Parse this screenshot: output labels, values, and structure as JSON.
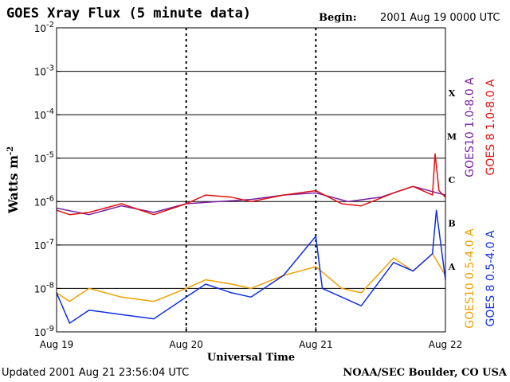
{
  "header": {
    "title": "GOES Xray Flux (5 minute data)",
    "begin_label": "Begin:",
    "begin_value": "2001 Aug 19 0000 UTC"
  },
  "footer": {
    "updated_label": "Updated",
    "updated_value": "2001 Aug 21 23:56:04 UTC",
    "credit": "NOAA/SEC Boulder, CO USA"
  },
  "chart_data": {
    "type": "line",
    "xlabel": "Universal Time",
    "ylabel_base": "Watts m",
    "ylabel_exp": "-2",
    "y_scale": "log",
    "ylim_exp": [
      -9,
      -2
    ],
    "y_ticks": [
      {
        "base": "10",
        "exp": "-9"
      },
      {
        "base": "10",
        "exp": "-8"
      },
      {
        "base": "10",
        "exp": "-7"
      },
      {
        "base": "10",
        "exp": "-6"
      },
      {
        "base": "10",
        "exp": "-5"
      },
      {
        "base": "10",
        "exp": "-4"
      },
      {
        "base": "10",
        "exp": "-3"
      },
      {
        "base": "10",
        "exp": "-2"
      }
    ],
    "x_range_days": [
      19,
      22
    ],
    "x_ticks": [
      "Aug 19",
      "Aug 20",
      "Aug 21",
      "Aug 22"
    ],
    "grid": "horizontal at each decade, dashed vertical at day boundaries",
    "flare_classes": [
      {
        "label": "A",
        "exp": -7.5
      },
      {
        "label": "B",
        "exp": -6.5
      },
      {
        "label": "C",
        "exp": -5.5
      },
      {
        "label": "M",
        "exp": -4.5
      },
      {
        "label": "X",
        "exp": -3.5
      }
    ],
    "series": [
      {
        "name": "GOES10 1.0-8.0 A",
        "color": "#7a1fa2",
        "x": [
          19.0,
          19.25,
          19.5,
          19.75,
          20.0,
          20.25,
          20.5,
          20.75,
          21.0,
          21.25,
          21.5,
          21.75,
          22.0
        ],
        "exp": [
          -6.15,
          -6.3,
          -6.1,
          -6.25,
          -6.05,
          -6.0,
          -5.95,
          -5.85,
          -5.8,
          -6.0,
          -5.9,
          -5.65,
          -5.85
        ]
      },
      {
        "name": "GOES 8 1.0-8.0 A",
        "color": "#e01010",
        "x": [
          19.0,
          19.1,
          19.25,
          19.5,
          19.75,
          20.0,
          20.15,
          20.35,
          20.5,
          20.75,
          21.0,
          21.2,
          21.35,
          21.6,
          21.75,
          21.9,
          21.92,
          21.95,
          22.0
        ],
        "exp": [
          -6.2,
          -6.3,
          -6.25,
          -6.05,
          -6.3,
          -6.05,
          -5.85,
          -5.9,
          -6.0,
          -5.85,
          -5.75,
          -6.05,
          -6.1,
          -5.8,
          -5.65,
          -5.85,
          -4.9,
          -5.75,
          -5.9
        ]
      },
      {
        "name": "GOES10 0.5-4.0 A",
        "color": "#f0a000",
        "x": [
          19.0,
          19.1,
          19.25,
          19.5,
          19.75,
          20.0,
          20.15,
          20.35,
          20.5,
          20.75,
          21.0,
          21.2,
          21.35,
          21.6,
          21.75,
          21.9,
          22.0
        ],
        "exp": [
          -8.1,
          -8.3,
          -8.0,
          -8.2,
          -8.3,
          -8.0,
          -7.8,
          -7.9,
          -8.0,
          -7.7,
          -7.5,
          -8.0,
          -8.1,
          -7.3,
          -7.6,
          -7.2,
          -7.7
        ]
      },
      {
        "name": "GOES 8 0.5-4.0 A",
        "color": "#1030e0",
        "x": [
          19.0,
          19.1,
          19.25,
          19.5,
          19.75,
          20.0,
          20.15,
          20.35,
          20.5,
          20.75,
          21.0,
          21.05,
          21.2,
          21.35,
          21.6,
          21.75,
          21.9,
          21.93,
          22.0
        ],
        "exp": [
          -8.1,
          -8.8,
          -8.5,
          -8.6,
          -8.7,
          -8.2,
          -7.9,
          -8.1,
          -8.2,
          -7.7,
          -6.8,
          -8.0,
          -8.2,
          -8.4,
          -7.4,
          -7.6,
          -7.2,
          -6.2,
          -7.8
        ]
      }
    ]
  }
}
